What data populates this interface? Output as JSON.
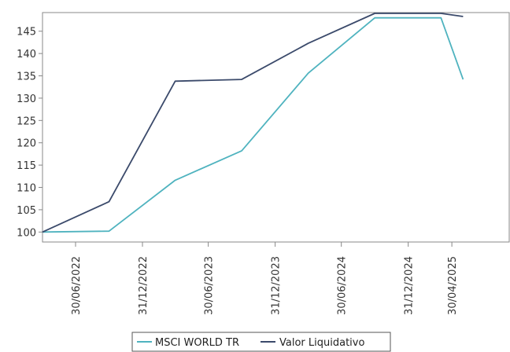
{
  "chart_data": {
    "type": "line",
    "title": "",
    "xlabel": "",
    "ylabel": "",
    "ylim": [
      99,
      149
    ],
    "yticks": [
      100,
      105,
      110,
      115,
      120,
      125,
      130,
      135,
      140,
      145
    ],
    "x_tick_labels": [
      "30/06/2022",
      "31/12/2022",
      "30/06/2023",
      "31/12/2023",
      "30/06/2024",
      "31/12/2024",
      "30/04/2025"
    ],
    "x_dates": [
      "31/03/2022",
      "30/09/2022",
      "31/03/2023",
      "30/09/2023",
      "31/03/2024",
      "30/09/2024",
      "31/03/2025",
      "31/05/2025"
    ],
    "grid": false,
    "legend_position": "bottom",
    "series": [
      {
        "name": "MSCI WORLD TR",
        "color": "#4FB3BF",
        "values": [
          100.0,
          100.2,
          111.6,
          118.2,
          135.6,
          148.0,
          148.0,
          134.2
        ]
      },
      {
        "name": "Valor Liquidativo",
        "color": "#3B4A6B",
        "values": [
          100.0,
          106.8,
          133.8,
          134.2,
          142.3,
          149.0,
          149.0,
          148.3
        ]
      }
    ]
  }
}
